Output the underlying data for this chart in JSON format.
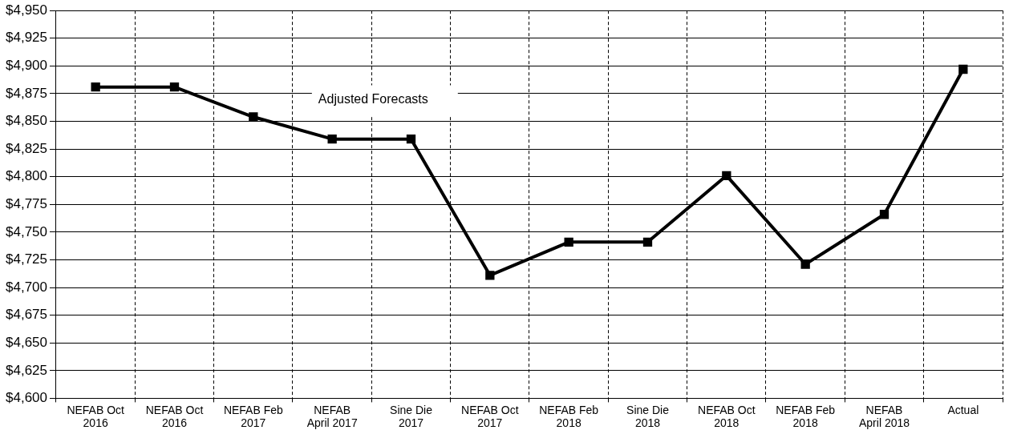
{
  "chart_data": {
    "type": "line",
    "categories": [
      "NEFAB Oct 2016",
      "NEFAB Oct 2016",
      "NEFAB Feb 2017",
      "NEFAB April 2017",
      "Sine Die 2017",
      "NEFAB Oct 2017",
      "NEFAB Feb 2018",
      "Sine Die 2018",
      "NEFAB Oct 2018",
      "NEFAB Feb 2018",
      "NEFAB April 2018",
      "Actual"
    ],
    "values": [
      4881,
      4881,
      4854,
      4834,
      4834,
      4711,
      4741,
      4741,
      4801,
      4721,
      4766,
      4897
    ],
    "color": "#000000",
    "ylim": [
      4600,
      4950
    ],
    "yticks": [
      {
        "value": 4600,
        "label": "$4,600"
      },
      {
        "value": 4625,
        "label": "$4,625"
      },
      {
        "value": 4650,
        "label": "$4,650"
      },
      {
        "value": 4675,
        "label": "$4,675"
      },
      {
        "value": 4700,
        "label": "$4,700"
      },
      {
        "value": 4725,
        "label": "$4,725"
      },
      {
        "value": 4750,
        "label": "$4,750"
      },
      {
        "value": 4775,
        "label": "$4,775"
      },
      {
        "value": 4800,
        "label": "$4,800"
      },
      {
        "value": 4825,
        "label": "$4,825"
      },
      {
        "value": 4850,
        "label": "$4,850"
      },
      {
        "value": 4875,
        "label": "$4,875"
      },
      {
        "value": 4900,
        "label": "$4,900"
      },
      {
        "value": 4925,
        "label": "$4,925"
      },
      {
        "value": 4950,
        "label": "$4,950"
      }
    ],
    "annotations": [
      "Adjusted Forecasts"
    ],
    "grid": true,
    "legend": false,
    "marker": "square",
    "line_style": "solid"
  }
}
